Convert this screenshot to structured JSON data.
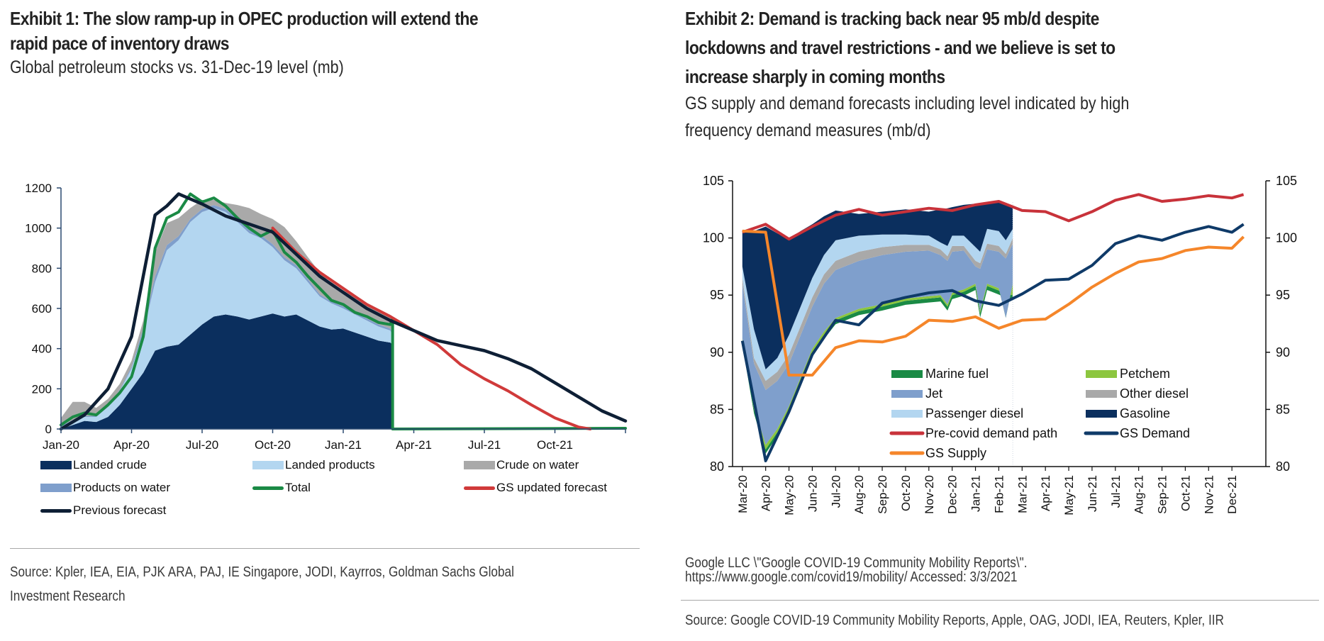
{
  "exhibit1": {
    "title_line1": "Exhibit 1: The slow ramp-up in OPEC production will extend the",
    "title_line2": "rapid pace of inventory draws",
    "subtitle": "Global petroleum stocks vs. 31-Dec-19 level (mb)",
    "source_line1": "Source: Kpler, IEA, EIA, PJK ARA, PAJ, IE Singapore, JODI, Kayrros, Goldman Sachs Global",
    "source_line2": "Investment Research"
  },
  "exhibit2": {
    "title_line1": "Exhibit 2: Demand is tracking back near 95 mb/d despite",
    "title_line2": "lockdowns and travel restrictions - and we believe is set to",
    "title_line3": "increase sharply in coming months",
    "subtitle_line1": "GS supply and demand forecasts including level indicated by high",
    "subtitle_line2": "frequency demand measures (mb/d)",
    "note_line1": "Google LLC \\\"Google COVID-19 Community Mobility Reports\\\".",
    "note_line2": "https://www.google.com/covid19/mobility/ Accessed: 3/3/2021",
    "source": "Source: Google COVID-19 Community Mobility Reports, Apple, OAG, JODI, IEA, Reuters, Kpler, IIR"
  },
  "chart_data": [
    {
      "type": "area",
      "title": "Global petroleum stocks vs. 31-Dec-19 level (mb)",
      "xlabel": "",
      "ylabel": "mb",
      "x_ticks": [
        "Jan-20",
        "Apr-20",
        "Jul-20",
        "Oct-20",
        "Jan-21",
        "Apr-21",
        "Jul-21",
        "Oct-21"
      ],
      "y_ticks": [
        0,
        200,
        400,
        600,
        800,
        1000,
        1200
      ],
      "ylim": [
        0,
        1200
      ],
      "xlim_months": [
        0,
        24
      ],
      "grid": false,
      "legend_position": "bottom",
      "colors": {
        "landed_crude": "#0b2f5e",
        "landed_products": "#b3d6f0",
        "crude_on_water": "#a9a9a9",
        "products_on_water": "#7f9fcc",
        "total": "#1a8a45",
        "gs_updated_forecast": "#d03a3a",
        "previous_forecast": "#0e1f35"
      },
      "legend": [
        "Landed crude",
        "Landed products",
        "Crude on water",
        "Products on water",
        "Total",
        "GS updated forecast",
        "Previous forecast"
      ],
      "x_months_from_jan20": [
        0,
        0.5,
        1,
        1.5,
        2,
        2.5,
        3,
        3.5,
        4,
        4.5,
        5,
        5.5,
        6,
        6.5,
        7,
        7.5,
        8,
        8.5,
        9,
        9.5,
        10,
        10.5,
        11,
        11.5,
        12,
        12.5,
        13,
        13.5,
        14,
        14.1
      ],
      "series": [
        {
          "name": "Landed crude",
          "kind": "stacked-area",
          "values": [
            0,
            20,
            40,
            35,
            60,
            120,
            200,
            280,
            390,
            410,
            420,
            470,
            520,
            560,
            570,
            560,
            545,
            560,
            575,
            560,
            570,
            540,
            510,
            495,
            500,
            480,
            460,
            440,
            430,
            420
          ]
        },
        {
          "name": "Landed products",
          "kind": "stacked-area",
          "values": [
            10,
            20,
            20,
            25,
            50,
            70,
            100,
            200,
            340,
            480,
            520,
            560,
            560,
            540,
            510,
            470,
            430,
            390,
            330,
            280,
            230,
            190,
            150,
            130,
            100,
            90,
            80,
            70,
            60,
            50
          ]
        },
        {
          "name": "Products on water",
          "kind": "stacked-area",
          "values": [
            5,
            5,
            5,
            5,
            5,
            5,
            10,
            20,
            30,
            25,
            20,
            15,
            15,
            15,
            15,
            15,
            15,
            15,
            15,
            15,
            15,
            15,
            10,
            10,
            10,
            10,
            10,
            10,
            10,
            10
          ]
        },
        {
          "name": "Crude on water",
          "kind": "stacked-area",
          "values": [
            40,
            90,
            70,
            40,
            35,
            30,
            30,
            40,
            120,
            110,
            90,
            55,
            45,
            25,
            30,
            70,
            110,
            105,
            125,
            150,
            120,
            110,
            110,
            90,
            80,
            75,
            75,
            70,
            60,
            50
          ]
        },
        {
          "name": "Total",
          "kind": "line",
          "values": [
            20,
            60,
            80,
            70,
            120,
            180,
            260,
            460,
            900,
            1050,
            1080,
            1170,
            1130,
            1150,
            1110,
            1050,
            1000,
            960,
            990,
            880,
            830,
            760,
            700,
            640,
            620,
            580,
            560,
            530,
            520,
            550
          ],
          "note": "drops to 0 after Mar-21 and remains 0 to end of axis"
        },
        {
          "name": "GS updated forecast",
          "kind": "line",
          "x_months_from_jan20": [
            9,
            10,
            11,
            12,
            13,
            14,
            15,
            16,
            17,
            18,
            19,
            20,
            21,
            22,
            22.5
          ],
          "values": [
            1000,
            880,
            780,
            700,
            620,
            560,
            490,
            420,
            320,
            250,
            190,
            120,
            55,
            10,
            0
          ]
        },
        {
          "name": "Previous forecast",
          "kind": "line",
          "x_months_from_jan20": [
            0,
            1,
            2,
            3,
            4,
            4.5,
            5,
            6,
            7,
            8,
            9,
            10,
            11,
            12,
            13,
            14,
            15,
            16,
            17,
            18,
            19,
            20,
            21,
            22,
            23,
            24
          ],
          "values": [
            0,
            70,
            200,
            460,
            1065,
            1110,
            1170,
            1120,
            1060,
            1020,
            980,
            870,
            760,
            680,
            600,
            540,
            490,
            440,
            415,
            390,
            350,
            300,
            230,
            160,
            90,
            40
          ]
        }
      ]
    },
    {
      "type": "area",
      "title": "GS supply and demand forecasts including level indicated by high frequency demand measures (mb/d)",
      "xlabel": "",
      "ylabel": "mb/d",
      "x_ticks": [
        "Mar-20",
        "Apr-20",
        "May-20",
        "Jun-20",
        "Jul-20",
        "Aug-20",
        "Sep-20",
        "Oct-20",
        "Nov-20",
        "Dec-20",
        "Jan-21",
        "Feb-21",
        "Mar-21",
        "Apr-21",
        "May-21",
        "Jun-21",
        "Jul-21",
        "Aug-21",
        "Sep-21",
        "Oct-21",
        "Nov-21",
        "Dec-21"
      ],
      "y_ticks_left": [
        80,
        85,
        90,
        95,
        100,
        105
      ],
      "y_ticks_right": [
        80,
        85,
        90,
        95,
        100,
        105
      ],
      "ylim": [
        80,
        105
      ],
      "grid": false,
      "legend_position": "bottom-center (inside plot)",
      "colors": {
        "marine_fuel": "#1a8a45",
        "petchem": "#8cc63f",
        "jet": "#7f9fcc",
        "other_diesel": "#a9a9a9",
        "passenger_diesel": "#b3d6f0",
        "gasoline": "#0b2f5e",
        "pre_covid": "#c8323a",
        "gs_demand": "#0f3a68",
        "gs_supply": "#f5862a"
      },
      "legend": [
        "Marine fuel",
        "Petchem",
        "Jet",
        "Other diesel",
        "Passenger diesel",
        "Gasoline",
        "Pre-covid demand path",
        "GS Demand",
        "GS Supply"
      ],
      "stack_x_months_from_mar20": [
        0,
        0.5,
        1,
        1.5,
        2,
        2.5,
        3,
        3.5,
        4,
        5,
        6,
        7,
        8,
        8.5,
        8.8,
        9,
        9.5,
        10,
        10.2,
        10.5,
        11,
        11.3,
        11.6
      ],
      "stack_boundaries": [
        {
          "name": "Marine fuel (top)",
          "values": [
            91,
            85,
            81.5,
            83,
            85,
            87.5,
            90,
            91.5,
            92.8,
            93.6,
            94,
            94.5,
            94.7,
            94.8,
            94,
            95,
            95.3,
            95.8,
            93.4,
            95.8,
            95.4,
            95.1,
            95
          ]
        },
        {
          "name": "Petchem (top)",
          "values": [
            91.2,
            85.3,
            81.9,
            83.3,
            85.3,
            87.8,
            90.3,
            91.8,
            93.0,
            93.8,
            94.2,
            94.7,
            94.9,
            95.0,
            94.2,
            95.2,
            95.5,
            96.0,
            93.6,
            96.0,
            95.6,
            93.0,
            96.0
          ]
        },
        {
          "name": "Jet (top)",
          "values": [
            96,
            89,
            86.7,
            87.5,
            89,
            91.5,
            94,
            96,
            97.2,
            98,
            98.5,
            98.8,
            98.9,
            98.5,
            98,
            98.8,
            98.9,
            97.5,
            97.3,
            99.0,
            98.8,
            98.2,
            99.5
          ]
        },
        {
          "name": "Other diesel (top)",
          "values": [
            96.5,
            89.5,
            87.5,
            88.3,
            89.8,
            92.3,
            94.8,
            96.8,
            98.0,
            98.8,
            99.2,
            99.4,
            99.4,
            99.0,
            98.4,
            99.3,
            99.3,
            98.0,
            97.8,
            99.5,
            99.3,
            98.6,
            100.0
          ]
        },
        {
          "name": "Passenger diesel (top)",
          "values": [
            97.5,
            92,
            88.5,
            89.5,
            91.5,
            94,
            96.5,
            98.5,
            99.8,
            100.2,
            100.3,
            100.3,
            100.2,
            99.6,
            99.3,
            100.2,
            100.2,
            99.2,
            98.8,
            100.8,
            100.6,
            99.8,
            100.8
          ]
        },
        {
          "name": "Gasoline (top)",
          "values": [
            100.5,
            100.6,
            101,
            100.4,
            99.9,
            100.6,
            101.2,
            101.9,
            102.4,
            102.1,
            102.3,
            102.5,
            102.3,
            102.5,
            102.6,
            102.7,
            102.9,
            103.0,
            103.0,
            103.1,
            103.2,
            102.9,
            102.7
          ]
        }
      ],
      "x_months_from_mar20": [
        0,
        1,
        2,
        3,
        4,
        5,
        6,
        7,
        8,
        9,
        10,
        11,
        12,
        13,
        14,
        15,
        16,
        17,
        18,
        19,
        20,
        21,
        21.5
      ],
      "series": [
        {
          "name": "Pre-covid demand path",
          "values": [
            100.5,
            101.2,
            99.9,
            101.0,
            102.0,
            102.5,
            102.0,
            102.3,
            102.6,
            102.4,
            102.9,
            103.2,
            102.4,
            102.3,
            101.5,
            102.3,
            103.3,
            103.8,
            103.2,
            103.4,
            103.7,
            103.5,
            103.8
          ]
        },
        {
          "name": "GS Demand",
          "values": [
            91.0,
            80.5,
            84.8,
            89.8,
            92.8,
            92.4,
            94.3,
            94.8,
            95.2,
            95.4,
            94.5,
            94.1,
            95.1,
            96.3,
            96.4,
            97.6,
            99.5,
            100.2,
            99.8,
            100.5,
            101.0,
            100.5,
            101.2
          ]
        },
        {
          "name": "GS Supply",
          "values": [
            100.6,
            100.5,
            88.0,
            88.0,
            90.4,
            91.0,
            90.9,
            91.4,
            92.8,
            92.7,
            93.1,
            92.1,
            92.8,
            92.9,
            94.2,
            95.7,
            96.9,
            97.9,
            98.2,
            98.9,
            99.2,
            99.1,
            100.1
          ]
        }
      ]
    }
  ]
}
